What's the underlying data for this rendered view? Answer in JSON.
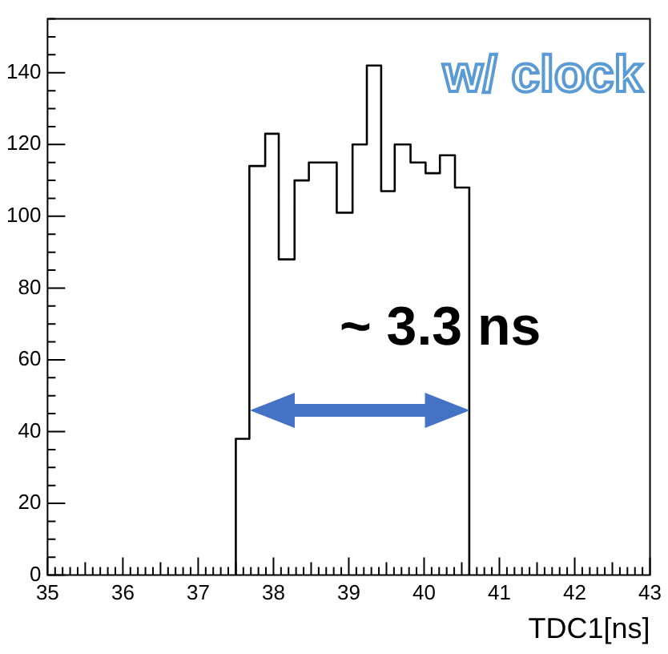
{
  "chart_data": {
    "type": "histogram",
    "xlabel": "TDC1[ns]",
    "bins": [
      37.5,
      37.68,
      37.89,
      38.07,
      38.28,
      38.47,
      38.65,
      38.84,
      39.05,
      39.24,
      39.43,
      39.61,
      39.82,
      40.02,
      40.21,
      40.41,
      40.6
    ],
    "values": [
      38,
      114,
      123,
      88,
      110,
      115,
      115,
      101,
      120,
      142,
      107,
      120,
      115,
      112,
      117,
      108
    ],
    "color": "#000000",
    "xlim": [
      35,
      43
    ],
    "xticks": [
      35,
      36,
      37,
      38,
      39,
      40,
      41,
      42,
      43
    ],
    "ylim": [
      0,
      155
    ],
    "yticks": [
      0,
      20,
      40,
      60,
      80,
      100,
      120,
      140
    ],
    "grid": false,
    "legend": false,
    "annotations": [
      "w/ clock",
      "~ 3.3 ns"
    ]
  }
}
